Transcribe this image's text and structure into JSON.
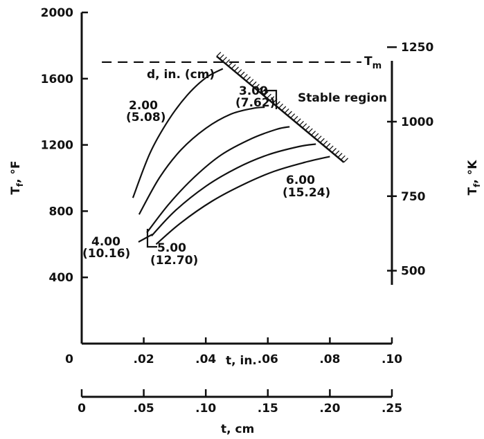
{
  "chart_data": {
    "type": "line",
    "xlabel_in": "t, in.",
    "xlabel_cm": "t, cm",
    "ylabel_left": "T_f, °F",
    "ylabel_right": "T_f, °K",
    "xlim": [
      0,
      0.1
    ],
    "ylim": [
      0,
      2000
    ],
    "x_ticks": [
      ".02",
      ".04",
      ".06",
      ".08",
      ".10"
    ],
    "x_origin_label": "0",
    "y_ticks": [
      "400",
      "800",
      "1200",
      "1600",
      "2000"
    ],
    "cm_ticks": [
      0,
      0.05,
      0.1,
      0.15,
      0.2,
      0.25
    ],
    "cm_tick_labels": [
      "0",
      ".05",
      ".10",
      ".15",
      ".20",
      ".25"
    ],
    "k_ticks": [
      500,
      750,
      1000,
      1250
    ],
    "k_tick_labels": [
      "500",
      "750",
      "1000",
      "1250"
    ],
    "melting_line": {
      "label": "T",
      "label_sub": "m",
      "y": 1700
    },
    "stable_boundary": {
      "label": "Stable region",
      "x": [
        0.0435,
        0.0845
      ],
      "y": [
        1735,
        1095
      ]
    },
    "legend_title": "d, in. (cm)",
    "series": [
      {
        "name": "2.00 (5.08)",
        "x": [
          0.0165,
          0.022,
          0.028,
          0.034,
          0.04,
          0.0455
        ],
        "y": [
          880,
          1150,
          1350,
          1500,
          1605,
          1660
        ]
      },
      {
        "name": "3.00 (7.62)",
        "x": [
          0.0185,
          0.025,
          0.032,
          0.04,
          0.048,
          0.055,
          0.059
        ],
        "y": [
          780,
          1000,
          1170,
          1300,
          1385,
          1420,
          1428
        ]
      },
      {
        "name": "4.00 (10.16)",
        "x": [
          0.021,
          0.028,
          0.036,
          0.045,
          0.055,
          0.063,
          0.067
        ],
        "y": [
          670,
          840,
          1000,
          1140,
          1240,
          1295,
          1310
        ]
      },
      {
        "name": "5.00 (12.70)",
        "x": [
          0.0225,
          0.03,
          0.04,
          0.05,
          0.06,
          0.07,
          0.0755
        ],
        "y": [
          650,
          800,
          950,
          1060,
          1140,
          1190,
          1205
        ]
      },
      {
        "name": "6.00 (15.24)",
        "x": [
          0.024,
          0.032,
          0.042,
          0.052,
          0.062,
          0.072,
          0.08
        ],
        "y": [
          600,
          730,
          860,
          960,
          1040,
          1095,
          1130
        ]
      }
    ],
    "labels": {
      "d2_a": "2.00",
      "d2_b": "(5.08)",
      "d3_a": "3.00",
      "d3_b": "(7.62)",
      "d4_a": "4.00",
      "d4_b": "(10.16)",
      "d5_a": "5.00",
      "d5_b": "(12.70)",
      "d6_a": "6.00",
      "d6_b": "(15.24)"
    }
  }
}
